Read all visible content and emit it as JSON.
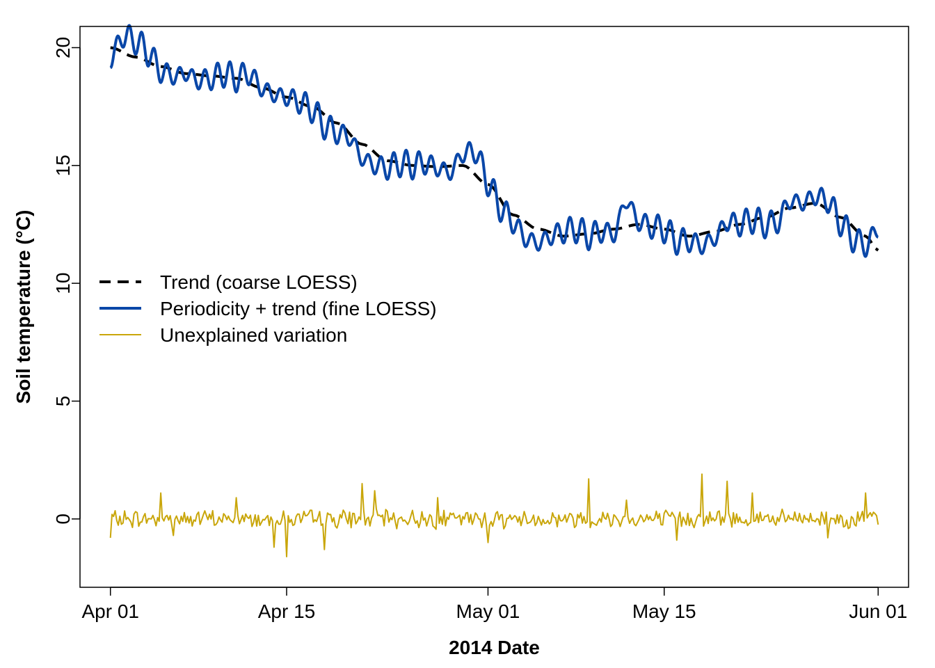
{
  "chart_data": {
    "type": "line",
    "title": "",
    "xlabel": "2014 Date",
    "ylabel": "Soil temperature (°C)",
    "x_ticks": [
      {
        "date": "2014-04-01",
        "label": "Apr 01"
      },
      {
        "date": "2014-04-15",
        "label": "Apr 15"
      },
      {
        "date": "2014-05-01",
        "label": "May 01"
      },
      {
        "date": "2014-05-15",
        "label": "May 15"
      },
      {
        "date": "2014-06-01",
        "label": "Jun 01"
      }
    ],
    "y_ticks": [
      0,
      5,
      10,
      15,
      20
    ],
    "xlim": [
      "2014-03-29T14:00",
      "2014-06-03T10:00"
    ],
    "ylim": [
      -2.9,
      20.9
    ],
    "grid": false,
    "legend_position": "middle-left",
    "legend": [
      "Trend (coarse LOESS)",
      "Periodicity + trend (fine LOESS)",
      "Unexplained variation"
    ],
    "series": [
      {
        "name": "Trend (coarse LOESS)",
        "color": "#000000",
        "style": "dashed",
        "points": [
          [
            "2014-04-01",
            20.0
          ],
          [
            "2014-04-03",
            19.6
          ],
          [
            "2014-04-05",
            19.2
          ],
          [
            "2014-04-07",
            18.9
          ],
          [
            "2014-04-09",
            18.8
          ],
          [
            "2014-04-11",
            18.7
          ],
          [
            "2014-04-13",
            18.3
          ],
          [
            "2014-04-15",
            17.9
          ],
          [
            "2014-04-17",
            17.5
          ],
          [
            "2014-04-19",
            16.8
          ],
          [
            "2014-04-21",
            15.9
          ],
          [
            "2014-04-23",
            15.2
          ],
          [
            "2014-04-25",
            15.0
          ],
          [
            "2014-04-27",
            14.95
          ],
          [
            "2014-04-29",
            15.0
          ],
          [
            "2014-05-01",
            14.2
          ],
          [
            "2014-05-03",
            12.9
          ],
          [
            "2014-05-05",
            12.3
          ],
          [
            "2014-05-07",
            12.0
          ],
          [
            "2014-05-09",
            12.1
          ],
          [
            "2014-05-11",
            12.3
          ],
          [
            "2014-05-13",
            12.5
          ],
          [
            "2014-05-15",
            12.3
          ],
          [
            "2014-05-17",
            12.0
          ],
          [
            "2014-05-19",
            12.2
          ],
          [
            "2014-05-21",
            12.5
          ],
          [
            "2014-05-23",
            12.8
          ],
          [
            "2014-05-25",
            13.2
          ],
          [
            "2014-05-27",
            13.4
          ],
          [
            "2014-05-29",
            12.8
          ],
          [
            "2014-05-31",
            12.0
          ],
          [
            "2014-06-01",
            11.4
          ]
        ]
      },
      {
        "name": "Periodicity + trend (fine LOESS)",
        "color": "#0a47a8",
        "style": "solid",
        "amplitude": 0.6,
        "points": [
          [
            "2014-04-01",
            19.5
          ],
          [
            "2014-04-02",
            20.5
          ],
          [
            "2014-04-03",
            20.3
          ],
          [
            "2014-04-04",
            19.8
          ],
          [
            "2014-04-05",
            19.0
          ],
          [
            "2014-04-06",
            18.8
          ],
          [
            "2014-04-07",
            18.9
          ],
          [
            "2014-04-08",
            18.6
          ],
          [
            "2014-04-09",
            18.7
          ],
          [
            "2014-04-10",
            18.9
          ],
          [
            "2014-04-11",
            18.7
          ],
          [
            "2014-04-12",
            18.9
          ],
          [
            "2014-04-13",
            18.3
          ],
          [
            "2014-04-14",
            18.0
          ],
          [
            "2014-04-15",
            17.9
          ],
          [
            "2014-04-16",
            17.7
          ],
          [
            "2014-04-17",
            17.4
          ],
          [
            "2014-04-18",
            16.7
          ],
          [
            "2014-04-19",
            16.4
          ],
          [
            "2014-04-20",
            16.2
          ],
          [
            "2014-04-21",
            15.3
          ],
          [
            "2014-04-22",
            15.0
          ],
          [
            "2014-04-23",
            14.9
          ],
          [
            "2014-04-24",
            15.1
          ],
          [
            "2014-04-25",
            15.0
          ],
          [
            "2014-04-26",
            15.1
          ],
          [
            "2014-04-27",
            14.9
          ],
          [
            "2014-04-28",
            14.7
          ],
          [
            "2014-04-29",
            15.5
          ],
          [
            "2014-04-30",
            15.6
          ],
          [
            "2014-05-01",
            14.3
          ],
          [
            "2014-05-02",
            13.2
          ],
          [
            "2014-05-03",
            12.6
          ],
          [
            "2014-05-04",
            11.9
          ],
          [
            "2014-05-05",
            11.7
          ],
          [
            "2014-05-06",
            12.0
          ],
          [
            "2014-05-07",
            12.2
          ],
          [
            "2014-05-08",
            12.3
          ],
          [
            "2014-05-09",
            12.0
          ],
          [
            "2014-05-10",
            12.2
          ],
          [
            "2014-05-11",
            12.1
          ],
          [
            "2014-05-12",
            13.5
          ],
          [
            "2014-05-13",
            12.6
          ],
          [
            "2014-05-14",
            12.4
          ],
          [
            "2014-05-15",
            12.3
          ],
          [
            "2014-05-16",
            11.8
          ],
          [
            "2014-05-17",
            11.8
          ],
          [
            "2014-05-18",
            11.6
          ],
          [
            "2014-05-19",
            11.9
          ],
          [
            "2014-05-20",
            12.6
          ],
          [
            "2014-05-21",
            12.5
          ],
          [
            "2014-05-22",
            12.7
          ],
          [
            "2014-05-23",
            12.5
          ],
          [
            "2014-05-24",
            12.6
          ],
          [
            "2014-05-25",
            13.5
          ],
          [
            "2014-05-26",
            13.4
          ],
          [
            "2014-05-27",
            13.7
          ],
          [
            "2014-05-28",
            13.5
          ],
          [
            "2014-05-29",
            12.6
          ],
          [
            "2014-05-30",
            11.9
          ],
          [
            "2014-05-31",
            11.6
          ],
          [
            "2014-06-01",
            12.3
          ]
        ]
      },
      {
        "name": "Unexplained variation",
        "color": "#c9a60a",
        "style": "solid",
        "baseline": 0,
        "spikes": [
          [
            "2014-04-01",
            -0.8
          ],
          [
            "2014-04-05",
            1.1
          ],
          [
            "2014-04-06",
            -0.7
          ],
          [
            "2014-04-11",
            0.9
          ],
          [
            "2014-04-14",
            1.8
          ],
          [
            "2014-04-14",
            -1.2
          ],
          [
            "2014-04-15",
            -1.6
          ],
          [
            "2014-04-18",
            -1.3
          ],
          [
            "2014-04-21",
            1.5
          ],
          [
            "2014-04-22",
            1.2
          ],
          [
            "2014-04-27",
            0.9
          ],
          [
            "2014-05-01",
            -1.0
          ],
          [
            "2014-05-09",
            1.7
          ],
          [
            "2014-05-12",
            0.8
          ],
          [
            "2014-05-16",
            -0.9
          ],
          [
            "2014-05-18",
            1.9
          ],
          [
            "2014-05-20",
            1.6
          ],
          [
            "2014-05-22",
            1.1
          ],
          [
            "2014-05-28",
            -0.8
          ],
          [
            "2014-05-31",
            1.1
          ]
        ]
      }
    ]
  }
}
